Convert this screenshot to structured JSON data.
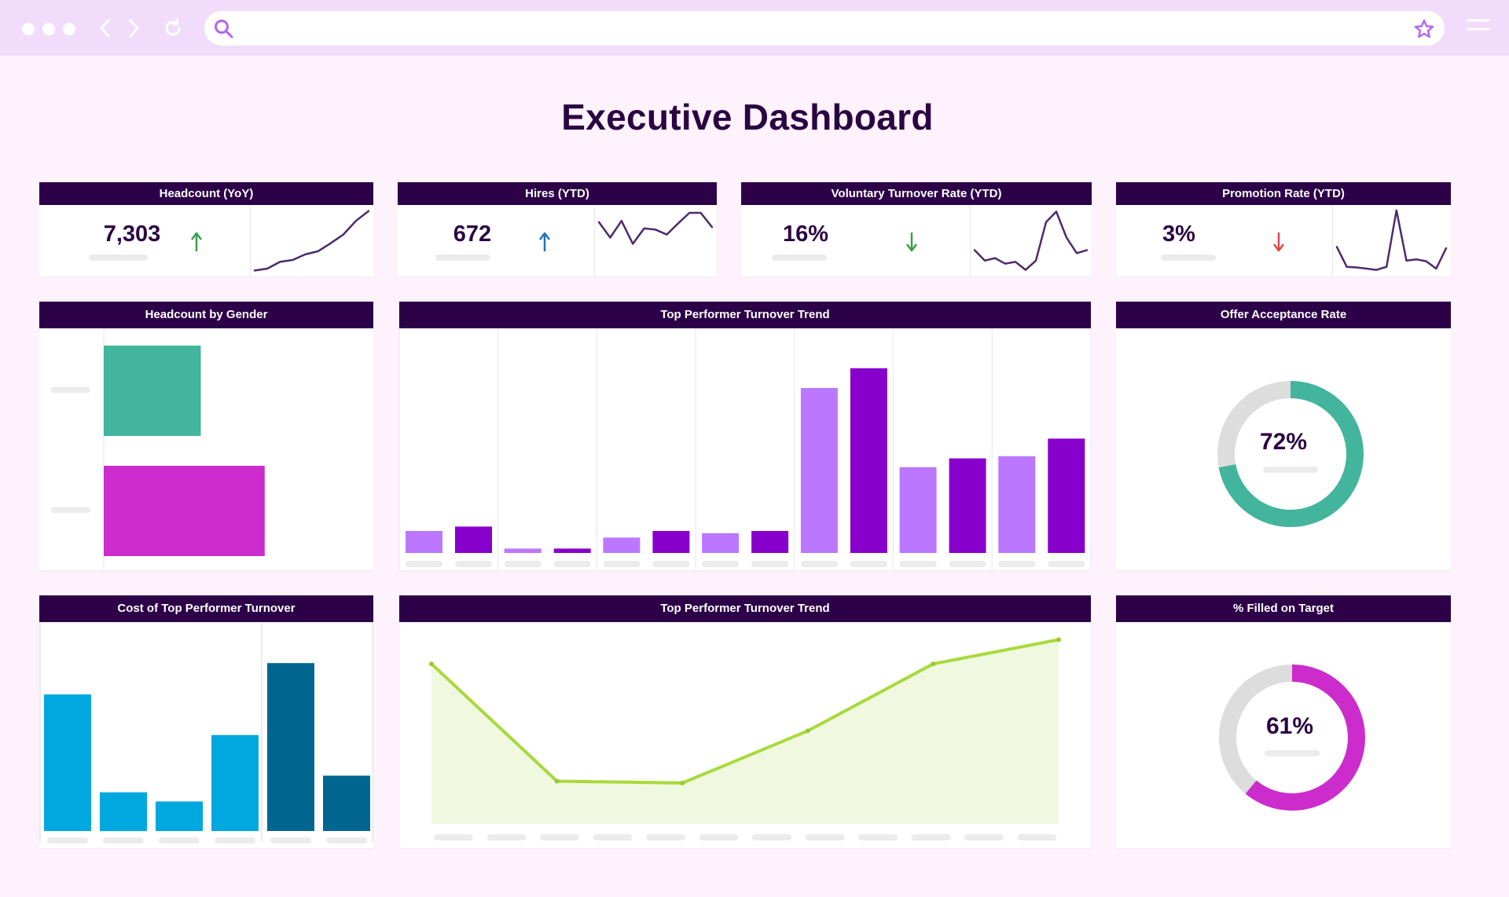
{
  "dashboard": {
    "title": "Executive Dashboard"
  },
  "browser": {
    "search_placeholder": ""
  },
  "kpis": [
    {
      "label": "Headcount (YoY)",
      "value": "7,303",
      "trend": "up",
      "trend_color": "#3aa04a",
      "trend_icon": "arrow-up-icon",
      "spark": [
        0.02,
        0.05,
        0.16,
        0.19,
        0.28,
        0.33,
        0.46,
        0.6,
        0.82,
        0.98
      ]
    },
    {
      "label": "Hires (YTD)",
      "value": "672",
      "trend": "up",
      "trend_color": "#1f74b5",
      "trend_icon": "arrow-up-icon",
      "spark": [
        0.8,
        0.55,
        0.82,
        0.45,
        0.7,
        0.68,
        0.6,
        0.78,
        0.95,
        0.95,
        0.72
      ]
    },
    {
      "label": "Voluntary Turnover Rate (YTD)",
      "value": "16%",
      "trend": "down",
      "trend_color": "#3aa04a",
      "trend_icon": "arrow-down-icon",
      "spark": [
        0.35,
        0.18,
        0.22,
        0.13,
        0.16,
        0.03,
        0.18,
        0.8,
        0.97,
        0.55,
        0.3,
        0.35
      ]
    },
    {
      "label": "Promotion Rate (YTD)",
      "value": "3%",
      "trend": "down",
      "trend_color": "#e04848",
      "trend_icon": "arrow-down-icon",
      "spark": [
        0.4,
        0.08,
        0.07,
        0.05,
        0.03,
        0.08,
        0.99,
        0.18,
        0.2,
        0.17,
        0.05,
        0.38
      ]
    }
  ],
  "gender_card": {
    "title": "Headcount by Gender"
  },
  "trend_bar_card": {
    "title": "Top Performer Turnover Trend"
  },
  "offer_card": {
    "title": "Offer Acceptance Rate",
    "value_label": "72%"
  },
  "cost_card": {
    "title": "Cost of Top Performer Turnover"
  },
  "trend_line_card": {
    "title": "Top Performer Turnover Trend"
  },
  "filled_card": {
    "title": "% Filled on Target",
    "value_label": "61%"
  },
  "chart_data": [
    {
      "id": "headcount-by-gender",
      "type": "bar",
      "orientation": "horizontal",
      "title": "Headcount by Gender",
      "categories": [
        "",
        ""
      ],
      "values": [
        38,
        63
      ],
      "xlim": [
        0,
        100
      ],
      "colors": [
        "#43b59c",
        "#cc2ccc"
      ]
    },
    {
      "id": "top-performer-turnover-trend-bar",
      "type": "bar",
      "title": "Top Performer Turnover Trend",
      "categories": [
        "",
        "",
        "",
        "",
        "",
        "",
        ""
      ],
      "series": [
        {
          "color": "#bb77ff",
          "values": [
            10,
            2,
            7,
            9,
            75,
            39,
            44
          ]
        },
        {
          "color": "#8800cc",
          "values": [
            12,
            2,
            10,
            10,
            84,
            43,
            52
          ]
        }
      ],
      "ylim": [
        0,
        100
      ],
      "grid": "vertical"
    },
    {
      "id": "offer-acceptance-rate",
      "type": "pie",
      "variant": "donut",
      "title": "Offer Acceptance Rate",
      "values": [
        72,
        28
      ],
      "colors": [
        "#43b59c",
        "#dddddd"
      ],
      "center_label": "72%"
    },
    {
      "id": "cost-of-top-performer-turnover",
      "type": "bar",
      "title": "Cost of Top Performer Turnover",
      "categories": [
        "",
        "",
        "",
        "",
        "",
        ""
      ],
      "values": [
        74,
        21,
        16,
        52,
        91,
        30
      ],
      "colors": [
        "#00a8e0",
        "#00a8e0",
        "#00a8e0",
        "#00a8e0",
        "#006690",
        "#006690"
      ],
      "ylim": [
        0,
        100
      ]
    },
    {
      "id": "top-performer-turnover-trend-line",
      "type": "area",
      "title": "Top Performer Turnover Trend",
      "x": [
        0,
        1,
        2,
        3,
        4,
        5
      ],
      "y": [
        86,
        23,
        22,
        50,
        86,
        99
      ],
      "ylim": [
        0,
        100
      ],
      "line_color": "#a9d93c",
      "fill_color": "#f1f8e0"
    },
    {
      "id": "filled-on-target",
      "type": "pie",
      "variant": "donut",
      "title": "% Filled on Target",
      "values": [
        61,
        39
      ],
      "colors": [
        "#cc2ccc",
        "#dddddd"
      ],
      "center_label": "61%"
    }
  ]
}
